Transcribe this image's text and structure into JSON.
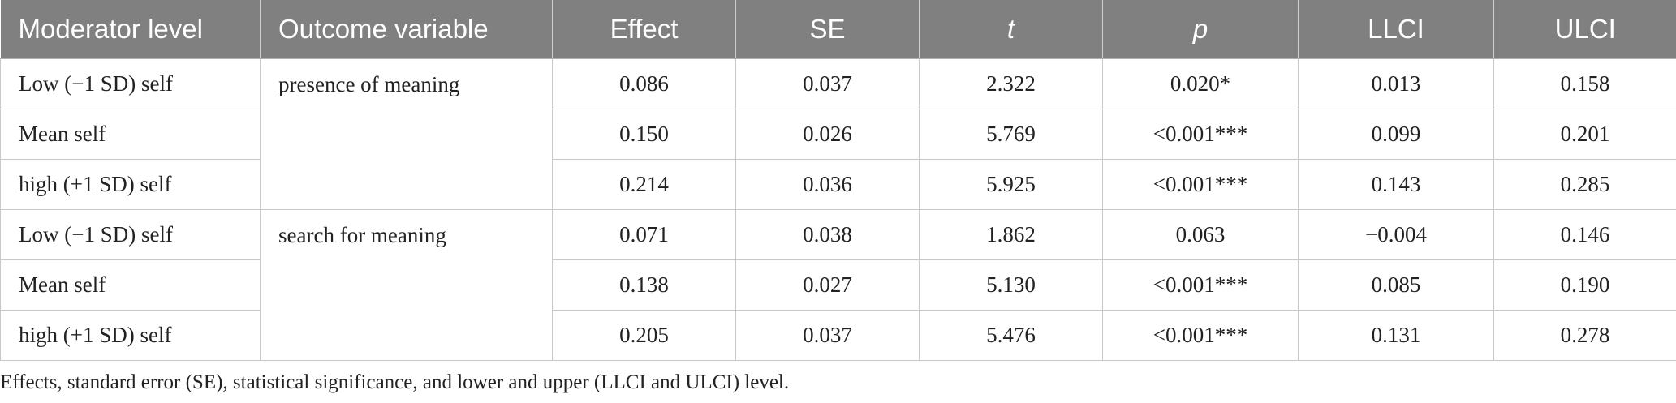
{
  "table": {
    "headers": [
      "Moderator level",
      "Outcome variable",
      "Effect",
      "SE",
      "t",
      "p",
      "LLCI",
      "ULCI"
    ],
    "groups": [
      {
        "outcome": "presence of meaning",
        "rows": [
          {
            "level": "Low (−1 SD) self",
            "effect": "0.086",
            "se": "0.037",
            "t": "2.322",
            "p": "0.020*",
            "llci": "0.013",
            "ulci": "0.158"
          },
          {
            "level": "Mean self",
            "effect": "0.150",
            "se": "0.026",
            "t": "5.769",
            "p": "<0.001***",
            "llci": "0.099",
            "ulci": "0.201"
          },
          {
            "level": "high (+1 SD) self",
            "effect": "0.214",
            "se": "0.036",
            "t": "5.925",
            "p": "<0.001***",
            "llci": "0.143",
            "ulci": "0.285"
          }
        ]
      },
      {
        "outcome": "search for meaning",
        "rows": [
          {
            "level": "Low (−1 SD) self",
            "effect": "0.071",
            "se": "0.038",
            "t": "1.862",
            "p": "0.063",
            "llci": "−0.004",
            "ulci": "0.146"
          },
          {
            "level": "Mean self",
            "effect": "0.138",
            "se": "0.027",
            "t": "5.130",
            "p": "<0.001***",
            "llci": "0.085",
            "ulci": "0.190"
          },
          {
            "level": "high (+1 SD) self",
            "effect": "0.205",
            "se": "0.037",
            "t": "5.476",
            "p": "<0.001***",
            "llci": "0.131",
            "ulci": "0.278"
          }
        ]
      }
    ]
  },
  "footnote": "Effects, standard error (SE), statistical significance, and lower and upper (LLCI and ULCI) level.",
  "colors": {
    "header_bg": "#808080",
    "header_text": "#ffffff",
    "border": "#c8c8c8"
  }
}
